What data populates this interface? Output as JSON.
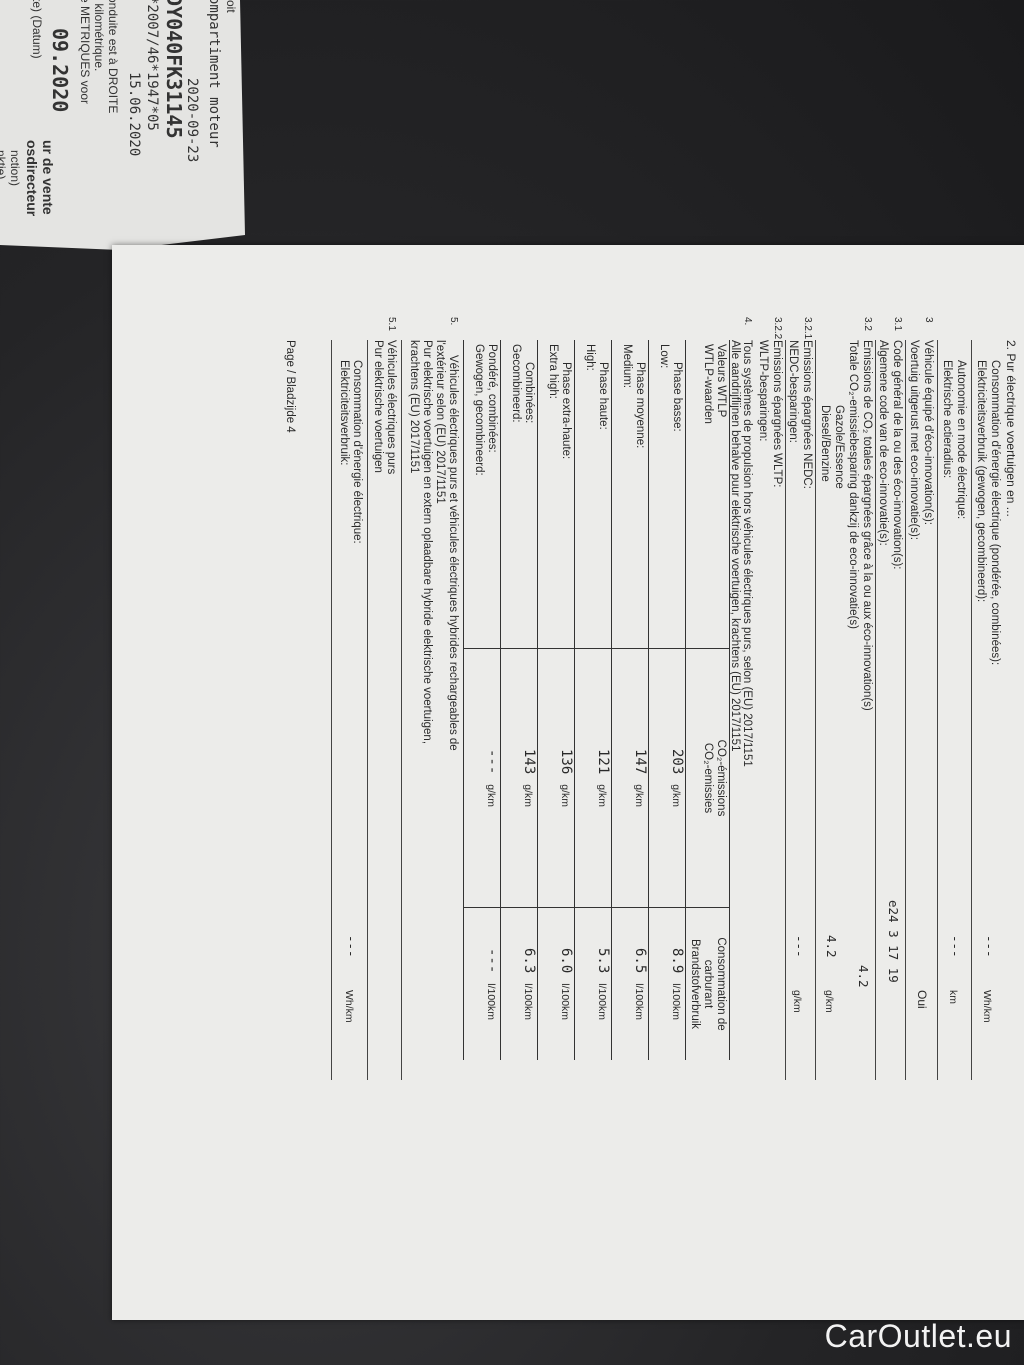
{
  "folded_page": {
    "lines": [
      "roit",
      "ompartiment moteur",
      "2020-09-23",
      "DY040FK31145",
      "*2007/46*1947*05",
      "15.06.2020",
      "onduite est à DROITE",
      "r kilométrique.",
      "e METRIQUES voor",
      "09.2020",
      "te) (Datum)",
      "ur de vente",
      "osdirecteur",
      "nction)",
      "nktie)"
    ]
  },
  "page": {
    "section2": {
      "title": "2. Pur électrique voertuigen en ...",
      "energy_fr": "Consommation d'énergie électrique (pondérée, combinées):",
      "energy_nl": "Elektriciteitsverbruik (gewogen, gecombineerd):",
      "energy_value": "---",
      "energy_unit": "Wh/km",
      "range_fr": "Autonomie en mode électrique:",
      "range_nl": "Elektrische actieradius:",
      "range_value": "---",
      "range_unit": "km"
    },
    "section3": {
      "num": "3",
      "fr": "Véhicule équipé d'éco-innovation(s):",
      "nl": "Voertuig uitgerust met eco-innovatie(s):",
      "value": "Oui",
      "s31": {
        "num": "3.1",
        "fr": "Code général de la ou des éco-innovation(s):",
        "nl": "Algemene code van de eco-innovatie(s):",
        "value": "e24 3 17 19"
      },
      "s32": {
        "num": "3.2",
        "fr": "Emissions de CO₂ totales épargnées grâce à la ou aux éco-innovation(s)",
        "nl": "Totale CO₂-emissiebesparing dankzij de eco-innovatie(s)",
        "value": "4.2"
      },
      "fuel": {
        "fr": "Gazole/Essence",
        "nl": "Diesel/Benzine",
        "value": "4.2",
        "unit": "g/km"
      },
      "s321": {
        "num": "3.2.1",
        "fr": "Emissions épargnées NEDC:",
        "nl": "NEDC-besparingen:",
        "value": "---",
        "unit": "g/km"
      },
      "s322": {
        "num": "3.2.2",
        "fr": "Emissions épargnées WLTP:",
        "nl": "WLTP-besparingen:"
      }
    },
    "section4": {
      "num": "4.",
      "fr": "Tous systèmes de propulsion hors véhicules électriques purs, selon (EU) 2017/1151",
      "nl": "Alle aandrijflijnen behalve puur elektrische voertuigen, krachtens (EU) 2017/1151",
      "table": {
        "headers": [
          {
            "fr": "Valeurs WTLP",
            "nl": "WTLP-waarden"
          },
          {
            "fr": "CO₂-émissions",
            "nl": "CO₂-emissies"
          },
          {
            "fr": "Consommation de carburant",
            "nl": "Brandstofverbruik"
          }
        ],
        "rows": [
          {
            "fr": "Phase basse:",
            "nl": "Low:",
            "co2": "203",
            "co2_unit": "g/km",
            "fuel": "8.9",
            "fuel_unit": "l/100km"
          },
          {
            "fr": "Phase moyenne:",
            "nl": "Medium:",
            "co2": "147",
            "co2_unit": "g/km",
            "fuel": "6.5",
            "fuel_unit": "l/100km"
          },
          {
            "fr": "Phase haute:",
            "nl": "High:",
            "co2": "121",
            "co2_unit": "g/km",
            "fuel": "5.3",
            "fuel_unit": "l/100km"
          },
          {
            "fr": "Phase extra-haute:",
            "nl": "Extra high:",
            "co2": "136",
            "co2_unit": "g/km",
            "fuel": "6.0",
            "fuel_unit": "l/100km"
          },
          {
            "fr": "Combinées:",
            "nl": "Gecombineerd:",
            "co2": "143",
            "co2_unit": "g/km",
            "fuel": "6.3",
            "fuel_unit": "l/100km"
          },
          {
            "fr": "Pondéré, combinées:",
            "nl": "Gewogen, gecombineerd:",
            "co2": "---",
            "co2_unit": "g/km",
            "fuel": "---",
            "fuel_unit": "l/100km"
          }
        ]
      }
    },
    "section5": {
      "num": "5.",
      "fr1": "Véhicules électriques purs et véhicules électriques hybrides rechargeables de",
      "fr2": "l'extérieur selon (EU) 2017/1151",
      "nl1": "Pur elektrische voertuigen en extern oplaadbare hybride elektrische voertuigen,",
      "nl2": "krachtens (EU) 2017/1151",
      "s51": {
        "num": "5.1",
        "fr": "Véhicules électriques purs",
        "nl": "Pur elektrische voertuigen"
      },
      "energy_fr": "Consommation d'énergie électrique:",
      "energy_nl": "Elektriciteitsverbruik:",
      "energy_value": "---",
      "energy_unit": "Wh/km"
    },
    "footer": "Page / Bladzijde 4"
  },
  "watermark": "CarOutlet.eu",
  "colors": {
    "background": "#242426",
    "paper": "#ececea",
    "edge_blue": "#62ace0"
  }
}
